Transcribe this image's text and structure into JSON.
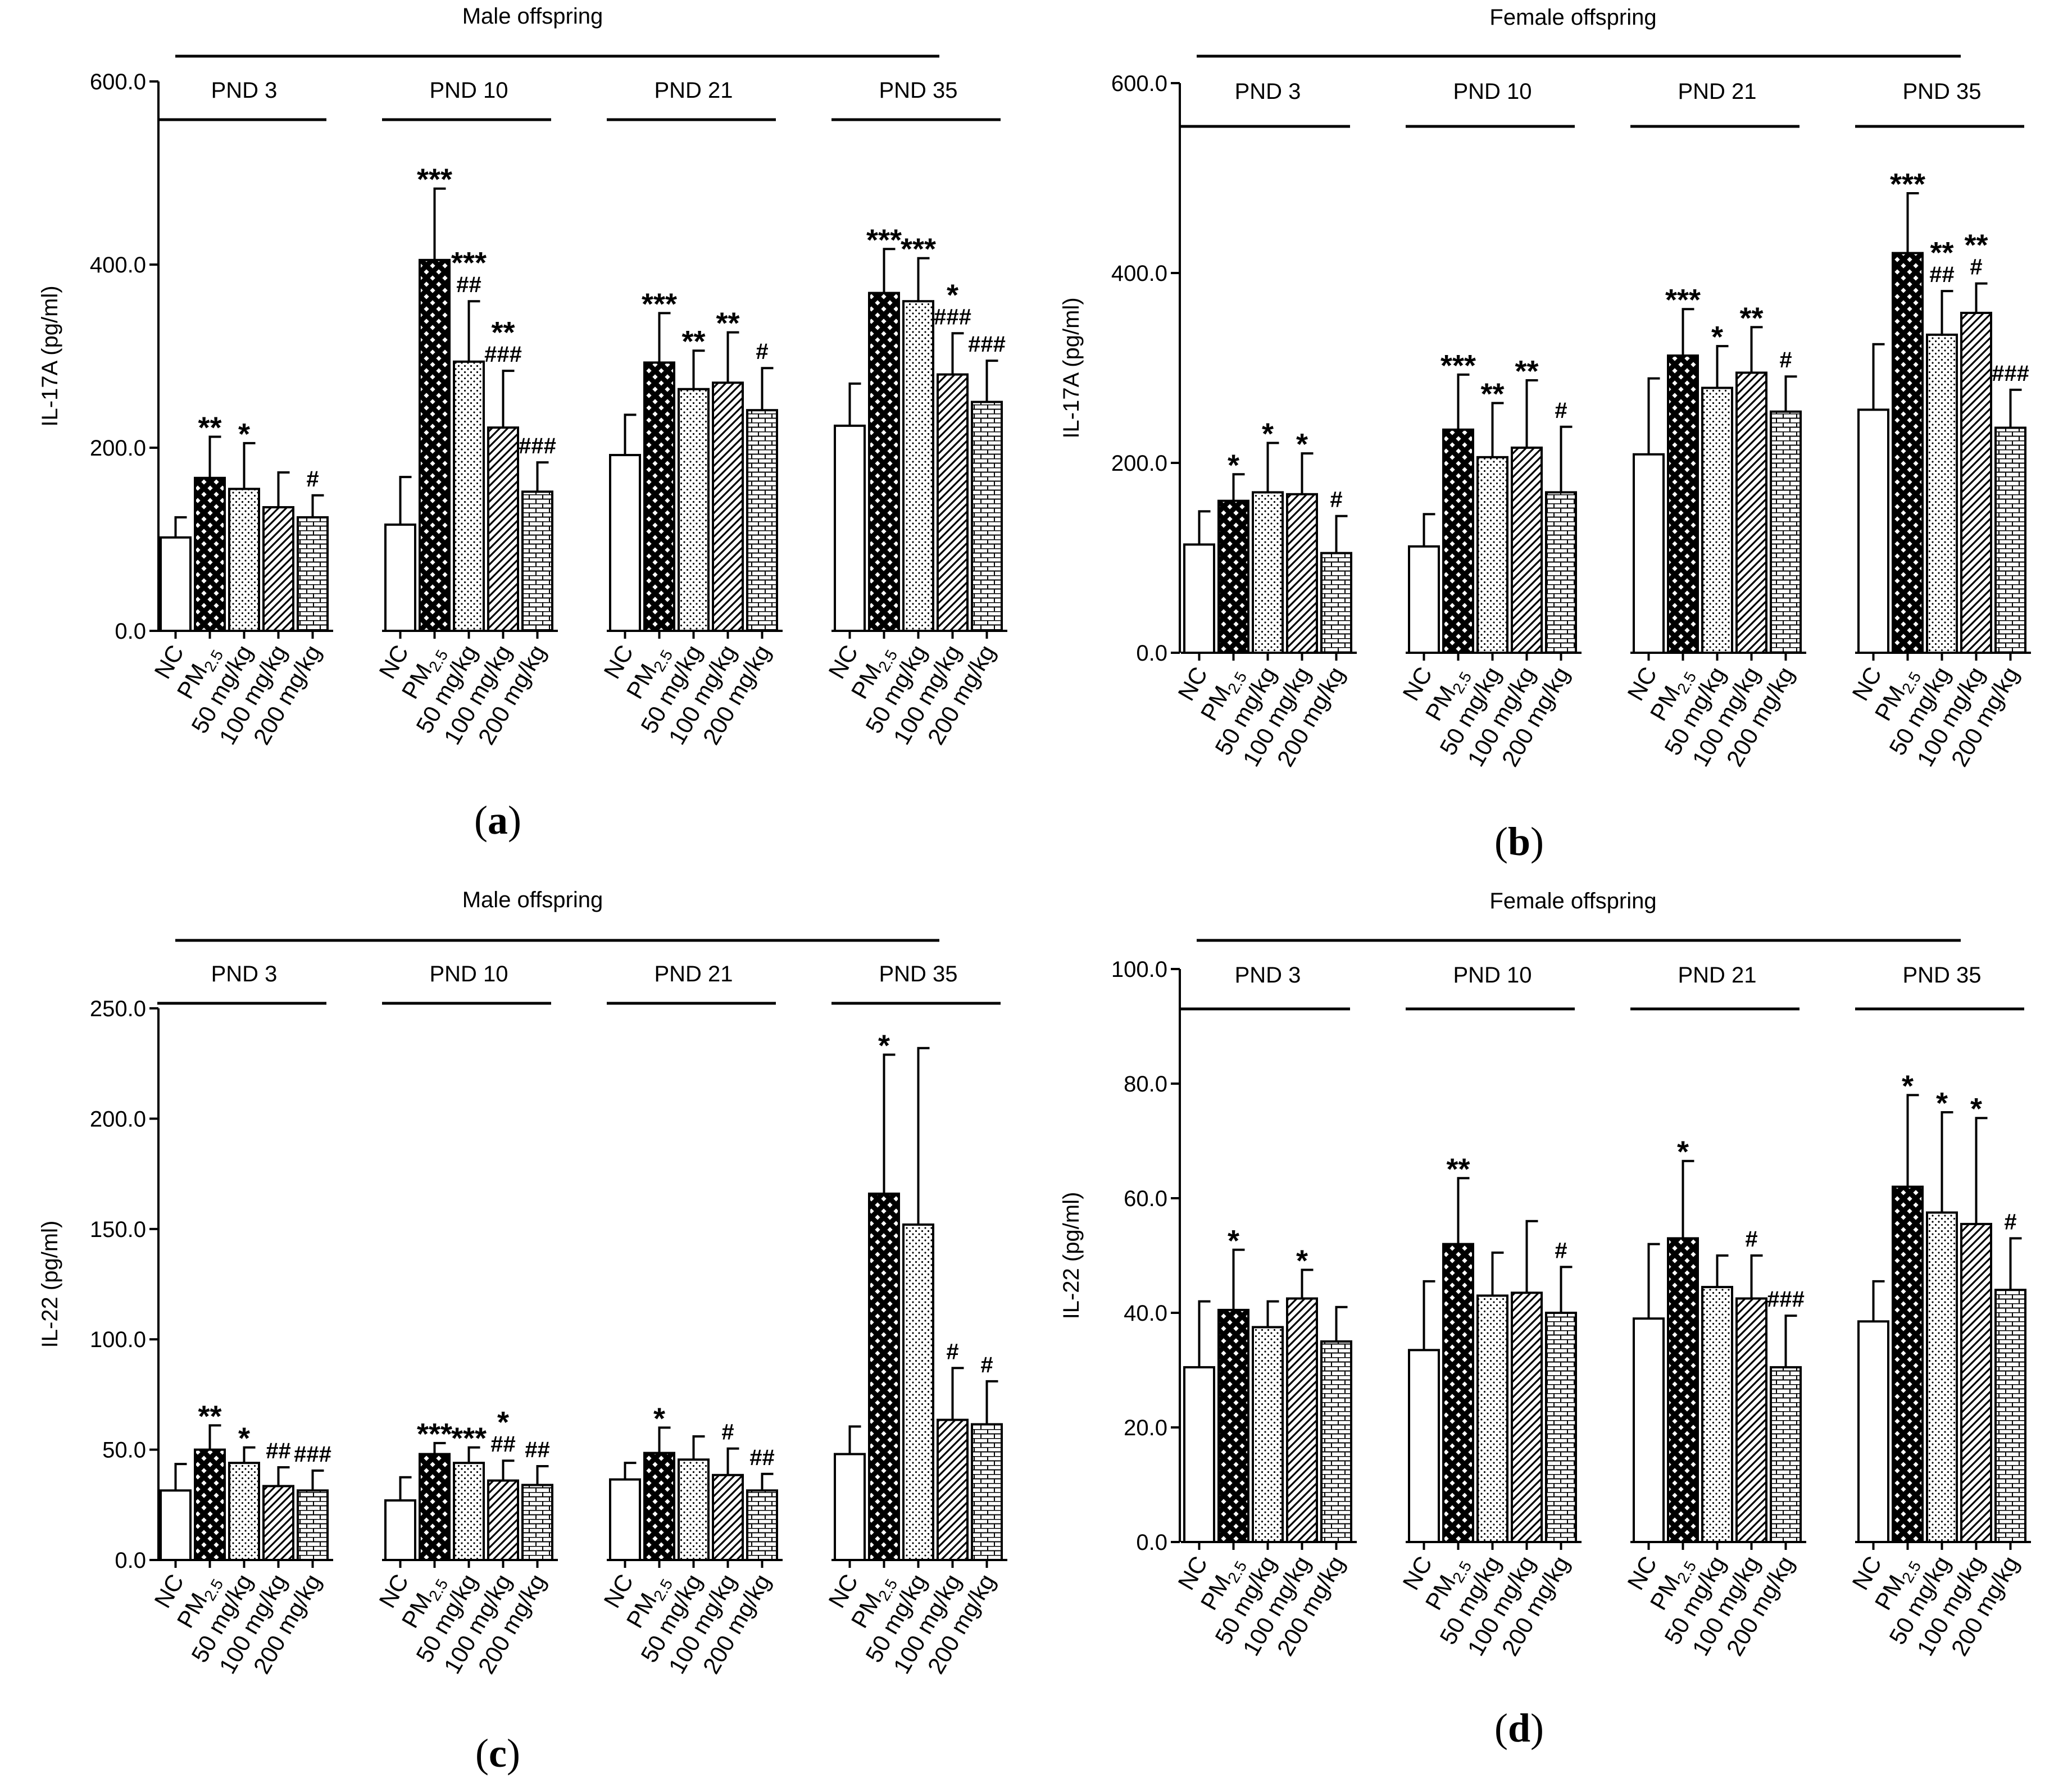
{
  "chart_data": [
    {
      "id": "a",
      "type": "bar",
      "title": "Male offspring",
      "ylabel": "IL-17A (pg/ml)",
      "xlabel": "",
      "ylim": [
        0,
        600
      ],
      "yticks": [
        "0.0",
        "200.0",
        "400.0",
        "600.0"
      ],
      "panel_label": "(a)",
      "legend": "none",
      "categories": [
        "NC",
        "PM2.5",
        "50 mg/kg",
        "100 mg/kg",
        "200 mg/kg"
      ],
      "groups": [
        {
          "label": "PND 3",
          "values": [
            102,
            167,
            155,
            135,
            124
          ],
          "errors": [
            22,
            45,
            50,
            38,
            24
          ],
          "marks": [
            "",
            "**",
            "*",
            "",
            "#"
          ]
        },
        {
          "label": "PND 10",
          "values": [
            116,
            405,
            294,
            222,
            152
          ],
          "errors": [
            52,
            78,
            66,
            62,
            32
          ],
          "marks": [
            "",
            "***",
            "***\n##",
            "**\n###",
            "###"
          ]
        },
        {
          "label": "PND 21",
          "values": [
            192,
            293,
            264,
            271,
            241
          ],
          "errors": [
            44,
            54,
            42,
            55,
            46
          ],
          "marks": [
            "",
            "***",
            "**",
            "**",
            "#"
          ]
        },
        {
          "label": "PND 35",
          "values": [
            224,
            369,
            360,
            280,
            250
          ],
          "errors": [
            46,
            48,
            47,
            45,
            45
          ],
          "marks": [
            "",
            "***",
            "***",
            "*\n###",
            "###"
          ]
        }
      ]
    },
    {
      "id": "b",
      "type": "bar",
      "title": "Female offspring",
      "ylabel": "IL-17A (pg/ml)",
      "xlabel": "",
      "ylim": [
        0,
        600
      ],
      "yticks": [
        "0.0",
        "200.0",
        "400.0",
        "600.0"
      ],
      "panel_label": "(b)",
      "legend": "none",
      "categories": [
        "NC",
        "PM2.5",
        "50 mg/kg",
        "100 mg/kg",
        "200 mg/kg"
      ],
      "groups": [
        {
          "label": "PND 3",
          "values": [
            114,
            160,
            169,
            167,
            105
          ],
          "errors": [
            35,
            28,
            52,
            43,
            39
          ],
          "marks": [
            "",
            "*",
            "*",
            "*",
            "#"
          ]
        },
        {
          "label": "PND 10",
          "values": [
            112,
            235,
            206,
            216,
            169
          ],
          "errors": [
            34,
            58,
            57,
            71,
            69
          ],
          "marks": [
            "",
            "***",
            "**",
            "**",
            "#"
          ]
        },
        {
          "label": "PND 21",
          "values": [
            209,
            313,
            279,
            295,
            254
          ],
          "errors": [
            80,
            49,
            44,
            48,
            37
          ],
          "marks": [
            "",
            "***",
            "*",
            "**",
            "#"
          ]
        },
        {
          "label": "PND 35",
          "values": [
            256,
            421,
            335,
            358,
            237
          ],
          "errors": [
            69,
            63,
            46,
            31,
            40
          ],
          "marks": [
            "",
            "***",
            "**\n##",
            "**\n#",
            "###"
          ]
        }
      ]
    },
    {
      "id": "c",
      "type": "bar",
      "title": "Male offspring",
      "ylabel": "IL-22 (pg/ml)",
      "xlabel": "",
      "ylim": [
        0,
        250
      ],
      "yticks": [
        "0.0",
        "50.0",
        "100.0",
        "150.0",
        "200.0",
        "250.0"
      ],
      "panel_label": "(c)",
      "legend": "none",
      "categories": [
        "NC",
        "PM2.5",
        "50 mg/kg",
        "100 mg/kg",
        "200 mg/kg"
      ],
      "groups": [
        {
          "label": "PND 3",
          "values": [
            31.5,
            50,
            44,
            33.5,
            31.5
          ],
          "errors": [
            12,
            11,
            7,
            8.5,
            9
          ],
          "marks": [
            "",
            "**",
            "*",
            "##",
            "###"
          ]
        },
        {
          "label": "PND 10",
          "values": [
            27,
            48,
            44,
            36,
            34
          ],
          "errors": [
            10.5,
            5,
            7,
            9,
            8.5
          ],
          "marks": [
            "",
            "***",
            "***",
            "*\n##",
            "##"
          ]
        },
        {
          "label": "PND 21",
          "values": [
            36.5,
            48.5,
            45.5,
            38.5,
            31.5
          ],
          "errors": [
            7.5,
            11.5,
            10.5,
            12,
            7.5
          ],
          "marks": [
            "",
            "*",
            "",
            "#",
            "##"
          ]
        },
        {
          "label": "PND 35",
          "values": [
            48,
            166,
            152,
            63.5,
            61.5
          ],
          "errors": [
            12.5,
            63,
            80,
            23.5,
            19.5
          ],
          "marks": [
            "",
            "*",
            "",
            "#",
            "#"
          ]
        }
      ]
    },
    {
      "id": "d",
      "type": "bar",
      "title": "Female offspring",
      "ylabel": "IL-22 (pg/ml)",
      "xlabel": "",
      "ylim": [
        0,
        100
      ],
      "yticks": [
        "0.0",
        "20.0",
        "40.0",
        "60.0",
        "80.0",
        "100.0"
      ],
      "panel_label": "(d)",
      "legend": "none",
      "categories": [
        "NC",
        "PM2.5",
        "50 mg/kg",
        "100 mg/kg",
        "200 mg/kg"
      ],
      "groups": [
        {
          "label": "PND 3",
          "values": [
            30.5,
            40.5,
            37.5,
            42.5,
            35
          ],
          "errors": [
            11.5,
            10.5,
            4.5,
            5,
            6
          ],
          "marks": [
            "",
            "*",
            "",
            "*",
            ""
          ]
        },
        {
          "label": "PND 10",
          "values": [
            33.5,
            52,
            43,
            43.5,
            40
          ],
          "errors": [
            12,
            11.5,
            7.5,
            12.5,
            8
          ],
          "marks": [
            "",
            "**",
            "",
            "",
            "#"
          ]
        },
        {
          "label": "PND 21",
          "values": [
            39,
            53,
            44.5,
            42.5,
            30.5
          ],
          "errors": [
            13,
            13.5,
            5.5,
            7.5,
            9
          ],
          "marks": [
            "",
            "*",
            "",
            "#",
            "###"
          ]
        },
        {
          "label": "PND 35",
          "values": [
            38.5,
            62,
            57.5,
            55.5,
            44
          ],
          "errors": [
            7,
            16,
            17.5,
            18.5,
            9
          ],
          "marks": [
            "",
            "*",
            "*",
            "*",
            "#"
          ]
        }
      ]
    }
  ]
}
